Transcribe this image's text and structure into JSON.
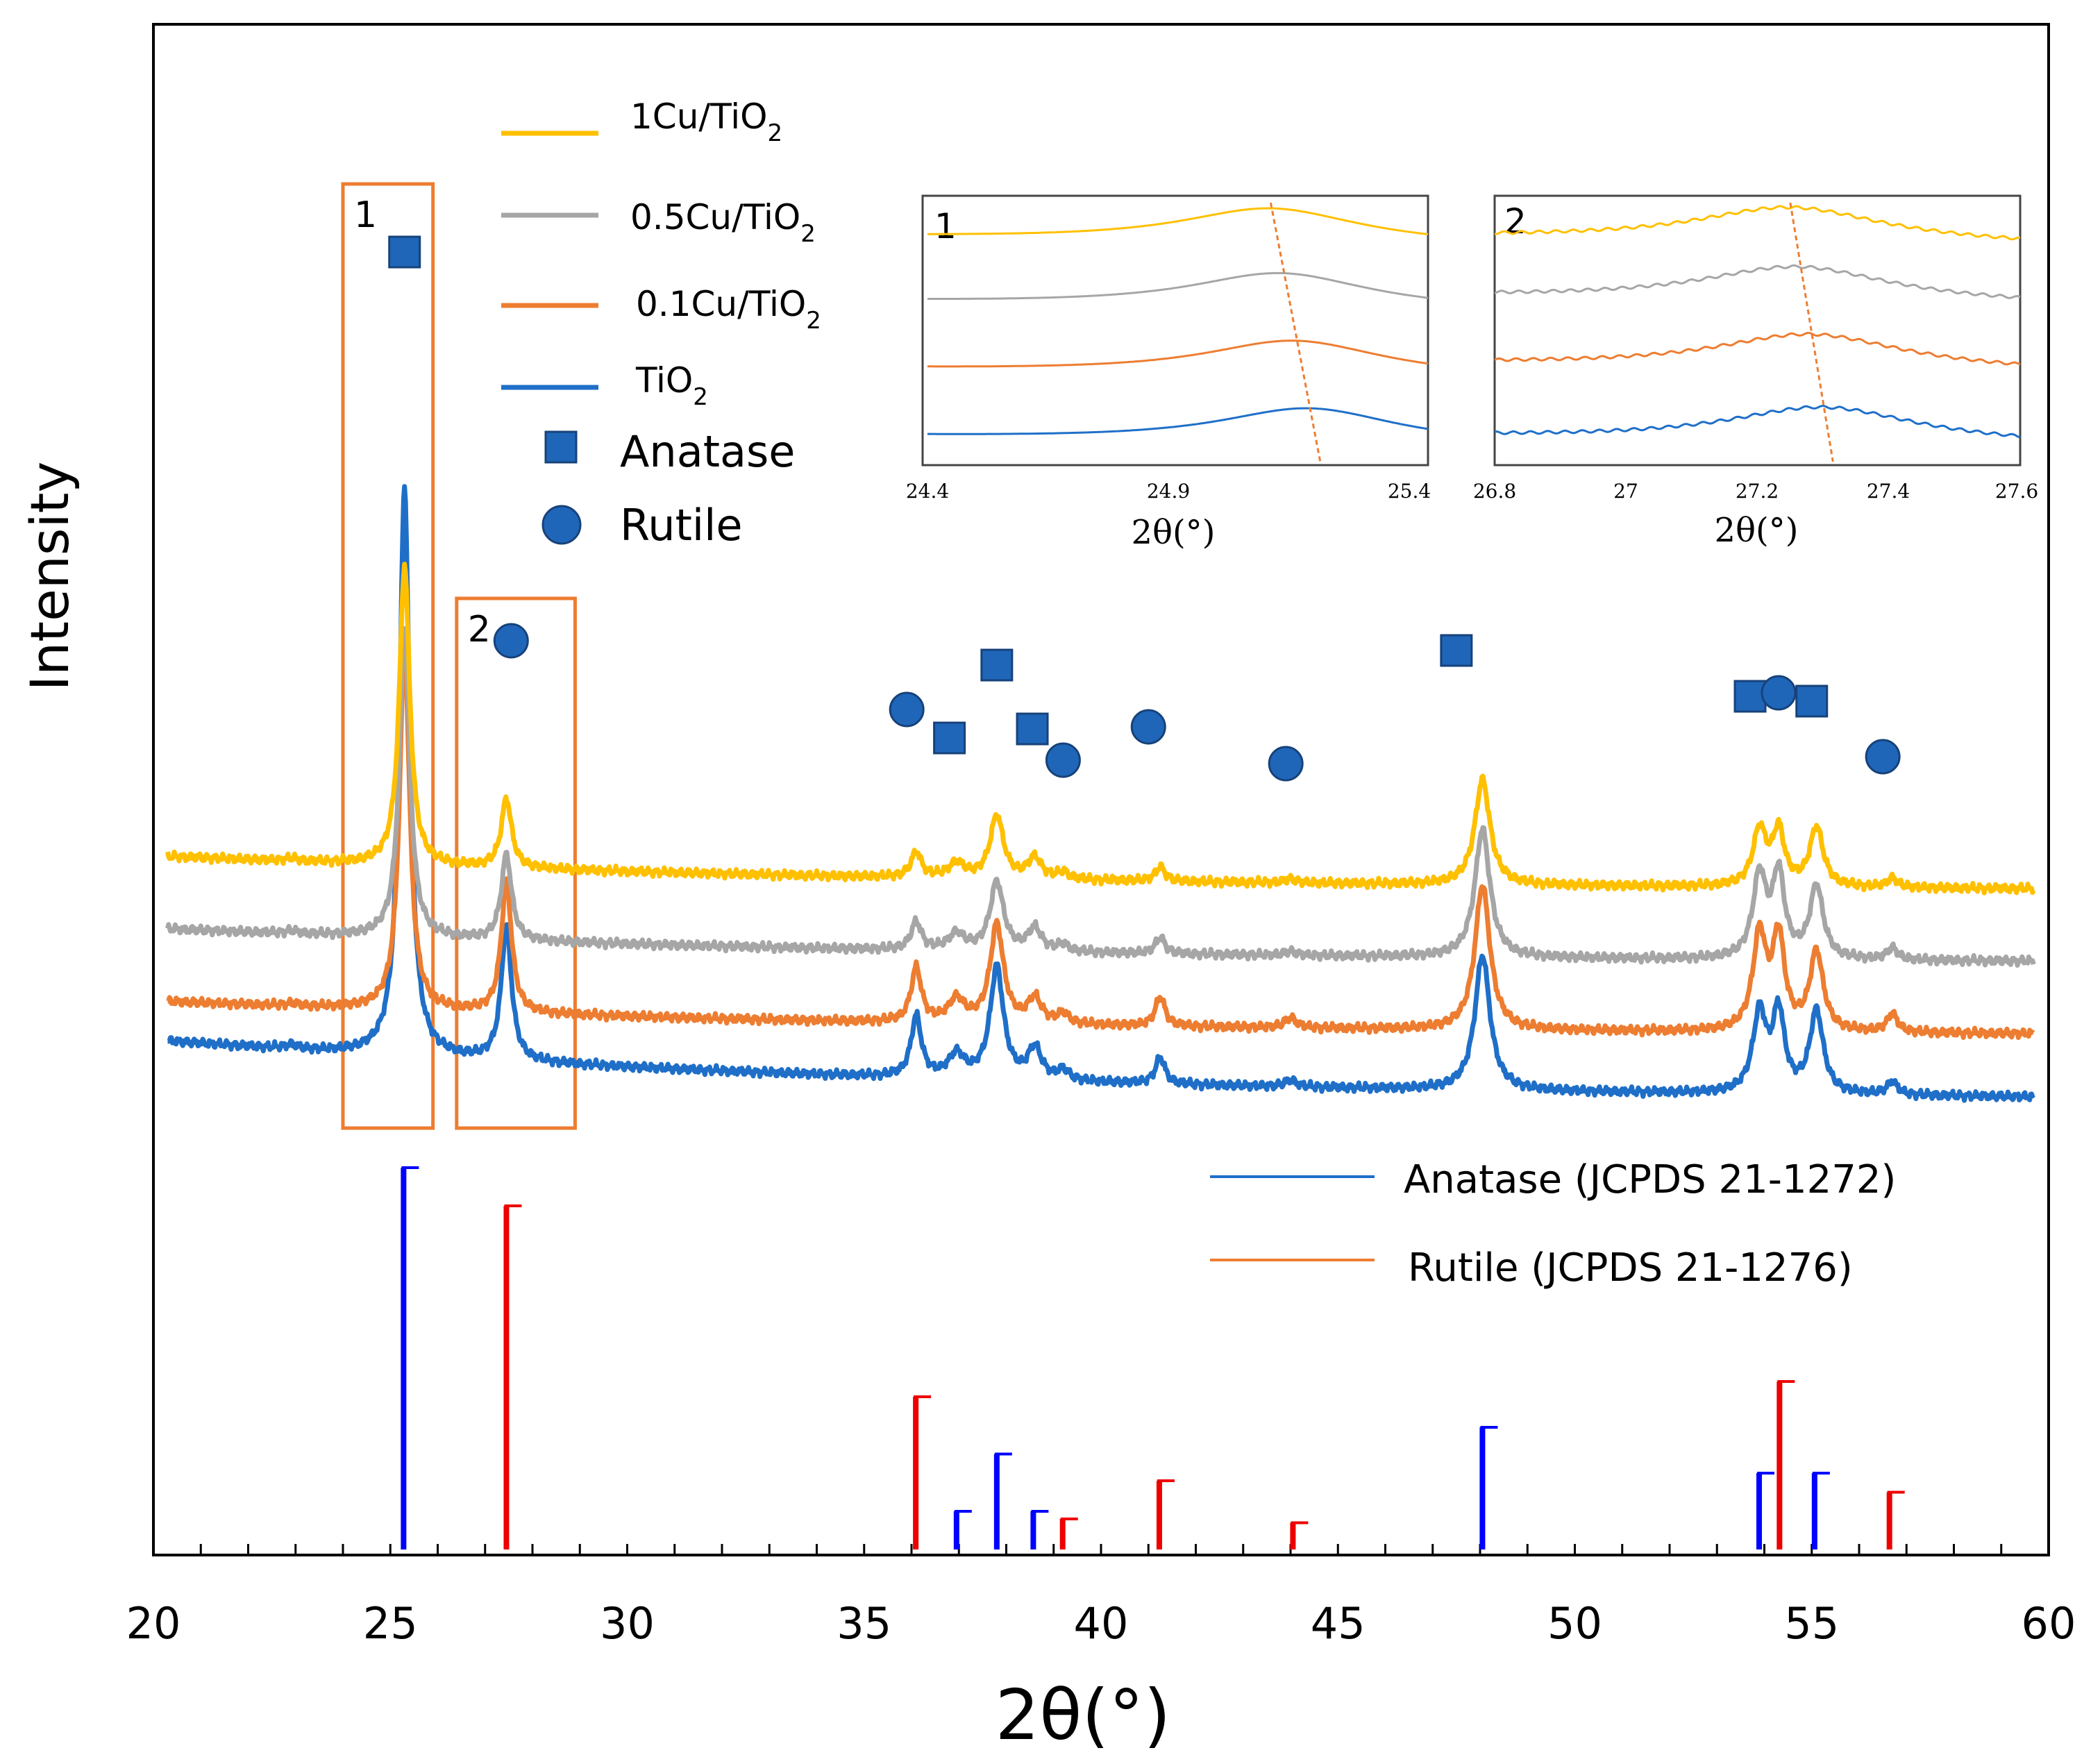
{
  "chart_data": {
    "type": "line",
    "xlabel": "2θ(°)",
    "ylabel": "Intensity",
    "xlim": [
      20,
      60
    ],
    "x_ticks": [
      20,
      25,
      30,
      35,
      40,
      45,
      50,
      55,
      60
    ],
    "grid": false,
    "legend_position": "top-left",
    "colors": {
      "1Cu/TiO2": "#FFC000",
      "0.5Cu/TiO2": "#A6A6A6",
      "0.1Cu/TiO2": "#ED7D31",
      "TiO2": "#1F6FC8",
      "anatase_ref": "#0000FF",
      "rutile_ref": "#EE0000",
      "marker": "#1F66B9",
      "box": "#ED7D31"
    },
    "legend": [
      {
        "key": "1Cu/TiO2",
        "label_main": "1Cu/TiO",
        "label_sub": "2"
      },
      {
        "key": "0.5Cu/TiO2",
        "label_main": "0.5Cu/TiO",
        "label_sub": "2"
      },
      {
        "key": "0.1Cu/TiO2",
        "label_main": "0.1Cu/TiO",
        "label_sub": "2"
      },
      {
        "key": "TiO2",
        "label_main": "TiO",
        "label_sub": "2"
      }
    ],
    "marker_legend": {
      "anatase": "Anatase",
      "rutile": "Rutile"
    },
    "series": [
      {
        "name": "1Cu/TiO2",
        "offset": 3.2,
        "baseline_start": 0.55,
        "baseline_end": 0.0,
        "peaks": [
          [
            22.9,
            0.04,
            0.15
          ],
          [
            25.3,
            4.55,
            0.13
          ],
          [
            27.45,
            1.05,
            0.13
          ],
          [
            36.1,
            0.38,
            0.13
          ],
          [
            36.95,
            0.22,
            0.2
          ],
          [
            37.8,
            0.95,
            0.17
          ],
          [
            38.6,
            0.32,
            0.17
          ],
          [
            39.2,
            0.1,
            0.15
          ],
          [
            41.25,
            0.22,
            0.12
          ],
          [
            44.0,
            0.06,
            0.15
          ],
          [
            48.05,
            1.6,
            0.19
          ],
          [
            53.9,
            0.85,
            0.17
          ],
          [
            54.3,
            0.82,
            0.15
          ],
          [
            55.1,
            0.9,
            0.17
          ],
          [
            56.7,
            0.14,
            0.13
          ]
        ]
      },
      {
        "name": "0.5Cu/TiO2",
        "offset": 2.1,
        "baseline_start": 0.55,
        "baseline_end": 0.0,
        "peaks": [
          [
            22.9,
            0.04,
            0.15
          ],
          [
            25.3,
            4.75,
            0.13
          ],
          [
            27.45,
            1.3,
            0.13
          ],
          [
            36.1,
            0.42,
            0.13
          ],
          [
            36.95,
            0.25,
            0.2
          ],
          [
            37.8,
            1.05,
            0.17
          ],
          [
            38.6,
            0.35,
            0.17
          ],
          [
            39.2,
            0.1,
            0.15
          ],
          [
            41.25,
            0.25,
            0.12
          ],
          [
            44.0,
            0.06,
            0.15
          ],
          [
            48.05,
            1.95,
            0.19
          ],
          [
            53.9,
            1.25,
            0.17
          ],
          [
            54.3,
            1.25,
            0.15
          ],
          [
            55.1,
            1.1,
            0.17
          ],
          [
            56.7,
            0.18,
            0.13
          ]
        ]
      },
      {
        "name": "0.1Cu/TiO2",
        "offset": 1.0,
        "baseline_start": 0.55,
        "baseline_end": 0.0,
        "peaks": [
          [
            22.9,
            0.04,
            0.15
          ],
          [
            25.3,
            5.5,
            0.13
          ],
          [
            27.45,
            2.0,
            0.13
          ],
          [
            36.1,
            0.82,
            0.13
          ],
          [
            36.95,
            0.35,
            0.2
          ],
          [
            37.8,
            1.5,
            0.17
          ],
          [
            38.6,
            0.38,
            0.17
          ],
          [
            39.2,
            0.15,
            0.15
          ],
          [
            41.25,
            0.45,
            0.12
          ],
          [
            44.0,
            0.15,
            0.15
          ],
          [
            48.05,
            2.2,
            0.19
          ],
          [
            53.9,
            1.45,
            0.17
          ],
          [
            54.3,
            1.4,
            0.15
          ],
          [
            55.1,
            1.2,
            0.17
          ],
          [
            56.7,
            0.28,
            0.13
          ]
        ]
      },
      {
        "name": "TiO2",
        "offset": 0.0,
        "baseline_start": 0.95,
        "baseline_end": 0.0,
        "peaks": [
          [
            22.9,
            0.06,
            0.15
          ],
          [
            25.3,
            8.6,
            0.13
          ],
          [
            27.45,
            2.05,
            0.13
          ],
          [
            36.1,
            0.92,
            0.13
          ],
          [
            36.95,
            0.35,
            0.2
          ],
          [
            37.8,
            1.7,
            0.17
          ],
          [
            38.6,
            0.48,
            0.17
          ],
          [
            39.2,
            0.15,
            0.15
          ],
          [
            41.25,
            0.4,
            0.12
          ],
          [
            44.0,
            0.1,
            0.15
          ],
          [
            48.05,
            2.05,
            0.19
          ],
          [
            53.9,
            1.2,
            0.17
          ],
          [
            54.3,
            1.2,
            0.15
          ],
          [
            55.1,
            1.25,
            0.17
          ],
          [
            56.7,
            0.2,
            0.13
          ]
        ]
      }
    ],
    "peak_markers": [
      {
        "phase": "anatase",
        "x": 25.3
      },
      {
        "phase": "rutile",
        "x": 27.55
      },
      {
        "phase": "rutile",
        "x": 35.9
      },
      {
        "phase": "anatase",
        "x": 36.8
      },
      {
        "phase": "anatase",
        "x": 37.8
      },
      {
        "phase": "anatase",
        "x": 38.55
      },
      {
        "phase": "rutile",
        "x": 39.2
      },
      {
        "phase": "rutile",
        "x": 41.0
      },
      {
        "phase": "rutile",
        "x": 43.9
      },
      {
        "phase": "anatase",
        "x": 47.5
      },
      {
        "phase": "anatase",
        "x": 53.7
      },
      {
        "phase": "rutile",
        "x": 54.3
      },
      {
        "phase": "anatase",
        "x": 55.0
      },
      {
        "phase": "rutile",
        "x": 56.5
      }
    ],
    "highlight_boxes": [
      {
        "label": "1",
        "x_range": [
          24.0,
          25.9
        ]
      },
      {
        "label": "2",
        "x_range": [
          26.4,
          28.9
        ]
      }
    ],
    "reference_legend": [
      {
        "label": "Anatase (JCPDS 21-1272)",
        "phase": "anatase"
      },
      {
        "label": "Rutile (JCPDS 21-1276)",
        "phase": "rutile"
      }
    ],
    "reference_lines": [
      {
        "phase": "anatase",
        "x": 25.28,
        "intensity": 100
      },
      {
        "phase": "anatase",
        "x": 36.95,
        "intensity": 10
      },
      {
        "phase": "anatase",
        "x": 37.8,
        "intensity": 25
      },
      {
        "phase": "anatase",
        "x": 38.57,
        "intensity": 10
      },
      {
        "phase": "anatase",
        "x": 48.05,
        "intensity": 32
      },
      {
        "phase": "anatase",
        "x": 53.89,
        "intensity": 20
      },
      {
        "phase": "anatase",
        "x": 55.06,
        "intensity": 20
      },
      {
        "phase": "rutile",
        "x": 27.45,
        "intensity": 90
      },
      {
        "phase": "rutile",
        "x": 36.09,
        "intensity": 40
      },
      {
        "phase": "rutile",
        "x": 39.19,
        "intensity": 8
      },
      {
        "phase": "rutile",
        "x": 41.23,
        "intensity": 18
      },
      {
        "phase": "rutile",
        "x": 44.05,
        "intensity": 7
      },
      {
        "phase": "rutile",
        "x": 54.32,
        "intensity": 44
      },
      {
        "phase": "rutile",
        "x": 56.64,
        "intensity": 15
      }
    ],
    "insets": [
      {
        "label": "1",
        "xlabel": "2θ(°)",
        "xlim": [
          24.4,
          25.45
        ],
        "tick_labels": [
          "24.4",
          "24.9",
          "25.4"
        ],
        "curves": [
          {
            "series": "1Cu/TiO2",
            "peak_x": 25.12,
            "level": 0.82
          },
          {
            "series": "0.5Cu/TiO2",
            "peak_x": 25.14,
            "level": 0.58
          },
          {
            "series": "0.1Cu/TiO2",
            "peak_x": 25.17,
            "level": 0.33
          },
          {
            "series": "TiO2",
            "peak_x": 25.2,
            "level": 0.08
          }
        ]
      },
      {
        "label": "2",
        "xlabel": "2θ(°)",
        "xlim": [
          26.8,
          27.6
        ],
        "tick_labels": [
          "26.8",
          "27",
          "27.2",
          "27.4",
          "27.6"
        ],
        "curves": [
          {
            "series": "1Cu/TiO2",
            "peak_x": 27.25,
            "level": 0.82
          },
          {
            "series": "0.5Cu/TiO2",
            "peak_x": 27.26,
            "level": 0.6
          },
          {
            "series": "0.1Cu/TiO2",
            "peak_x": 27.28,
            "level": 0.35
          },
          {
            "series": "TiO2",
            "peak_x": 27.3,
            "level": 0.08
          }
        ]
      }
    ]
  }
}
